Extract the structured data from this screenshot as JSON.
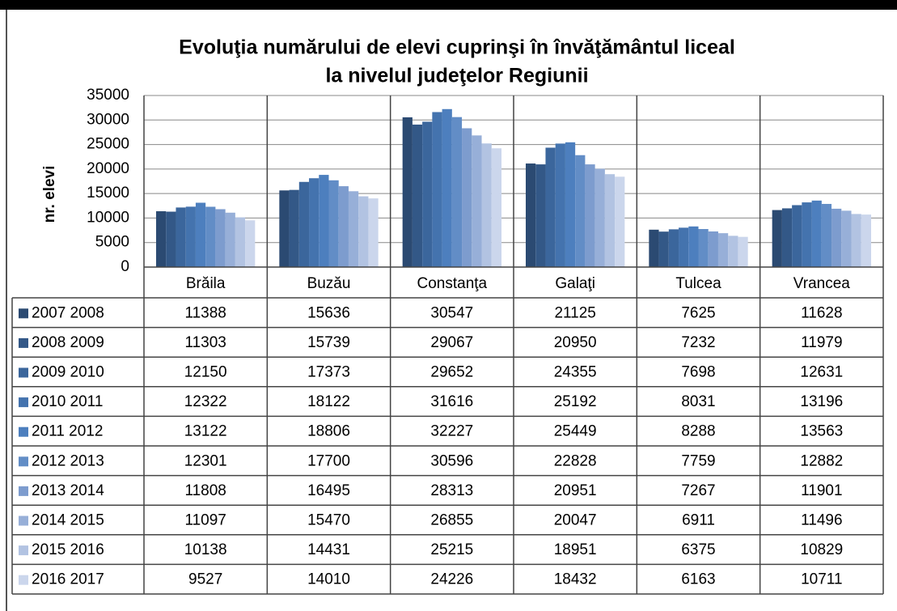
{
  "chart_data": {
    "type": "bar",
    "title": [
      "Evoluţia numărului de elevi cuprinşi în învăţământul liceal",
      "la nivelul judeţelor Regiunii"
    ],
    "y_label": "nr. elevi",
    "categories": [
      "Brăila",
      "Buzău",
      "Constanţa",
      "Galaţi",
      "Tulcea",
      "Vrancea"
    ],
    "ylim": [
      0,
      35000
    ],
    "yticks": [
      0,
      5000,
      10000,
      15000,
      20000,
      25000,
      30000,
      35000
    ],
    "grid": true,
    "series": [
      {
        "name": "2007 2008",
        "color": "#2b4a72",
        "values": [
          11388,
          15636,
          30547,
          21125,
          7625,
          11628
        ]
      },
      {
        "name": "2008 2009",
        "color": "#335887",
        "values": [
          11303,
          15739,
          29067,
          20950,
          7232,
          11979
        ]
      },
      {
        "name": "2009 2010",
        "color": "#3b669c",
        "values": [
          12150,
          17373,
          29652,
          24355,
          7698,
          12631
        ]
      },
      {
        "name": "2010 2011",
        "color": "#4473ae",
        "values": [
          12322,
          18122,
          31616,
          25192,
          8031,
          13196
        ]
      },
      {
        "name": "2011 2012",
        "color": "#4d7fbe",
        "values": [
          13122,
          18806,
          32227,
          25449,
          8288,
          13563
        ]
      },
      {
        "name": "2012 2013",
        "color": "#628dc6",
        "values": [
          12301,
          17700,
          30596,
          22828,
          7759,
          12882
        ]
      },
      {
        "name": "2013 2014",
        "color": "#7d9cce",
        "values": [
          11808,
          16495,
          28313,
          20951,
          7267,
          11901
        ]
      },
      {
        "name": "2014 2015",
        "color": "#97afd8",
        "values": [
          11097,
          15470,
          26855,
          20047,
          6911,
          11496
        ]
      },
      {
        "name": "2015 2016",
        "color": "#b2c3e2",
        "values": [
          10138,
          14431,
          25215,
          18951,
          6375,
          10829
        ]
      },
      {
        "name": "2016 2017",
        "color": "#cbd6ec",
        "values": [
          9527,
          14010,
          24226,
          18432,
          6163,
          10711
        ]
      }
    ]
  }
}
